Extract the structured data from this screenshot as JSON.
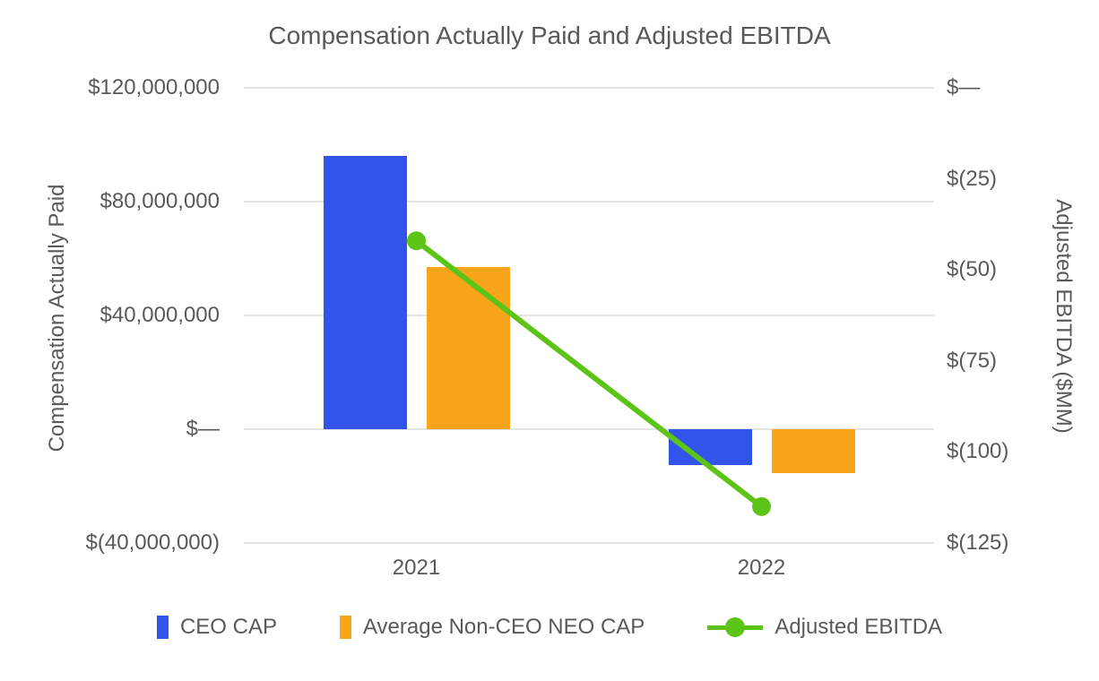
{
  "chart_data": {
    "type": "bar",
    "subtype": "dual-axis combo (clustered columns + line with markers)",
    "title": "Compensation Actually Paid and Adjusted EBITDA",
    "categories": [
      "2021",
      "2022"
    ],
    "series": [
      {
        "name": "CEO CAP",
        "type": "bar",
        "axis": "left",
        "color": "#3155EB",
        "values": [
          96000000,
          -12600000
        ]
      },
      {
        "name": "Average Non-CEO NEO CAP",
        "type": "bar",
        "axis": "left",
        "color": "#F9A51C",
        "values": [
          57000000,
          -15400000
        ]
      },
      {
        "name": "Adjusted EBITDA",
        "type": "line",
        "axis": "right",
        "color": "#5CC417",
        "values": [
          -42,
          -115
        ]
      }
    ],
    "left_axis": {
      "label": "Compensation Actually Paid",
      "min": -40000000,
      "max": 120000000,
      "tick_interval": 40000000,
      "tick_labels": [
        "$120,000,000",
        "$80,000,000",
        "$40,000,000",
        "$—",
        "$(40,000,000)"
      ]
    },
    "right_axis": {
      "label": "Adjusted EBITDA ($MM)",
      "min": -125,
      "max": 0,
      "tick_interval": 25,
      "tick_labels": [
        "$—",
        "$(25)",
        "$(50)",
        "$(75)",
        "$(100)",
        "$(125)"
      ]
    },
    "grid": true,
    "legend_position": "bottom",
    "colors": {
      "text": "#595959",
      "gridline": "#e4e4e4",
      "background": "#ffffff"
    }
  }
}
